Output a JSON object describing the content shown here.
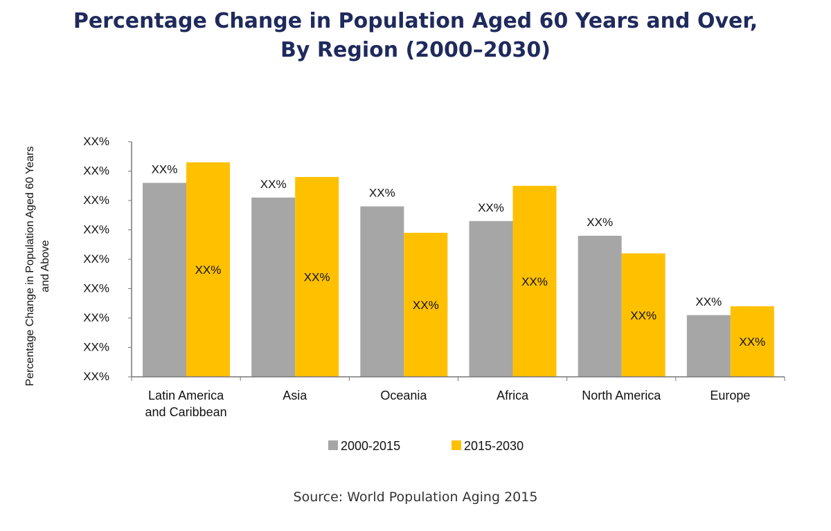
{
  "title_line1": "Percentage Change in Population Aged 60 Years and Over,",
  "title_line2": "By Region (2000–2030)",
  "source": "Source: World Population Aging 2015",
  "chart_data": {
    "type": "bar",
    "title": "Percentage Change in Population Aged 60 Years and Over, By Region (2000–2030)",
    "xlabel": "",
    "ylabel": "Percentage Change in Population Aged 60 Years and Above",
    "ylim": [
      0,
      8
    ],
    "yticks": [
      "XX%",
      "XX%",
      "XX%",
      "XX%",
      "XX%",
      "XX%",
      "XX%",
      "XX%",
      "XX%"
    ],
    "categories": [
      [
        "Latin America",
        "and Caribbean"
      ],
      [
        "Asia"
      ],
      [
        "Oceania"
      ],
      [
        "Africa"
      ],
      [
        "North America"
      ],
      [
        "Europe"
      ]
    ],
    "series": [
      {
        "name": "2000-2015",
        "color": "#a6a6a6",
        "values": [
          6.6,
          6.1,
          5.8,
          5.3,
          4.8,
          2.1
        ],
        "labels": [
          "XX%",
          "XX%",
          "XX%",
          "XX%",
          "XX%",
          "XX%"
        ]
      },
      {
        "name": "2015-2030",
        "color": "#ffc000",
        "values": [
          7.3,
          6.8,
          4.9,
          6.5,
          4.2,
          2.4
        ],
        "labels": [
          "XX%",
          "XX%",
          "XX%",
          "XX%",
          "XX%",
          "XX%"
        ]
      }
    ],
    "legend_position": "bottom",
    "grid": false
  }
}
